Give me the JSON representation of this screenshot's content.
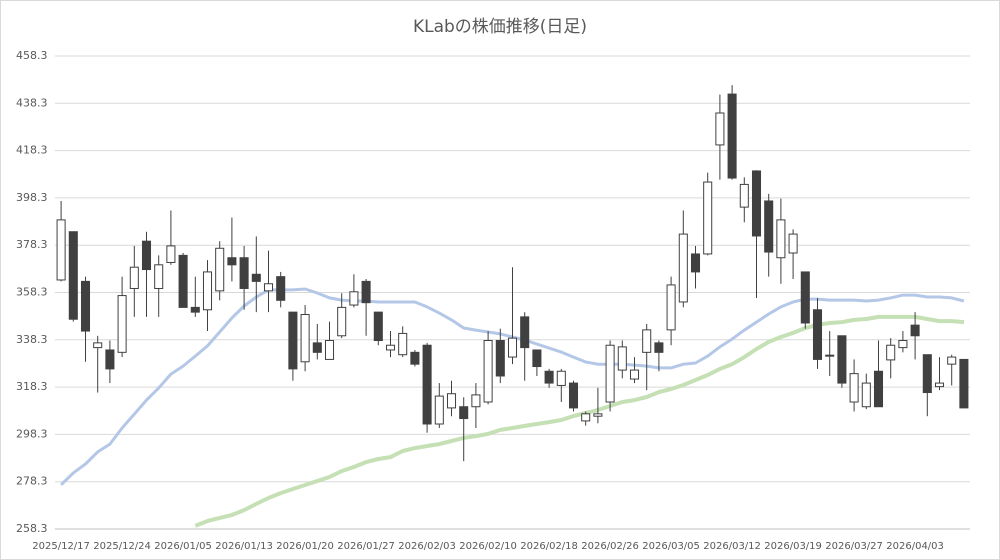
{
  "chart_data": {
    "type": "candlestick",
    "title": "KLabの株価推移(日足)",
    "categories": [
      "2025/12/17",
      null,
      null,
      null,
      null,
      "2025/12/24",
      null,
      null,
      null,
      null,
      "2026/01/05",
      null,
      null,
      null,
      null,
      "2026/01/13",
      null,
      null,
      null,
      null,
      "2026/01/20",
      null,
      null,
      null,
      null,
      "2026/01/27",
      null,
      null,
      null,
      null,
      "2026/02/03",
      null,
      null,
      null,
      null,
      "2026/02/10",
      null,
      null,
      null,
      null,
      "2026/02/18",
      null,
      null,
      null,
      null,
      "2026/02/26",
      null,
      null,
      null,
      null,
      "2026/03/05",
      null,
      null,
      null,
      null,
      "2026/03/12",
      null,
      null,
      null,
      null,
      "2026/03/19",
      null,
      null,
      null,
      null,
      "2026/03/27",
      null,
      null,
      null,
      null,
      "2026/04/03",
      null,
      null,
      null,
      null
    ],
    "open": [
      363.6,
      384,
      363,
      335,
      334,
      333,
      360,
      380,
      360,
      371,
      374,
      352,
      351,
      359,
      373,
      373,
      366,
      359,
      365,
      350,
      329,
      337,
      330,
      340,
      353,
      363,
      350,
      334,
      332,
      333,
      336,
      302.7,
      309.5,
      310,
      310,
      312,
      338,
      331,
      348,
      334,
      325,
      319,
      320,
      304,
      306,
      312,
      325.5,
      321.7,
      333,
      337,
      342.5,
      354.3,
      374.6,
      374.6,
      420.7,
      442.2,
      394.4,
      409.7,
      397,
      373,
      375,
      367,
      351,
      331.8,
      340,
      312,
      310,
      325,
      329.8,
      335,
      344.5,
      332,
      318.5,
      328,
      330
    ],
    "high": [
      397,
      384,
      365,
      340,
      338,
      365,
      378,
      384,
      374,
      393,
      375,
      365,
      372,
      380,
      390,
      378,
      382,
      376,
      367,
      350,
      353,
      345,
      346,
      358,
      366,
      364,
      350,
      342,
      344,
      334,
      337,
      320,
      321,
      314,
      320,
      342,
      343,
      369,
      350,
      334,
      326,
      326,
      321,
      308,
      318,
      338,
      338,
      331,
      345,
      338,
      365,
      393,
      378,
      409,
      442,
      446,
      407,
      410,
      400,
      398,
      385,
      367,
      356,
      342,
      340,
      330,
      324,
      338,
      339,
      342,
      350,
      332,
      331,
      332,
      330
    ],
    "low": [
      363,
      346,
      329,
      316,
      320,
      331,
      348,
      348,
      348,
      370,
      352,
      348,
      342,
      355,
      363,
      351,
      350,
      350,
      352,
      321,
      325,
      330,
      330,
      339,
      352,
      340,
      336,
      331,
      331,
      327,
      299,
      301,
      306,
      287,
      301,
      311,
      320,
      328,
      321,
      323,
      318,
      312,
      308,
      302,
      303,
      308,
      322,
      320,
      317,
      325,
      336,
      352,
      360,
      374,
      406,
      406,
      388,
      356,
      365,
      362,
      364,
      343,
      326,
      323,
      318,
      308,
      309,
      310,
      322,
      333,
      330,
      306,
      317,
      319,
      309.5
    ],
    "close": [
      389,
      347,
      342,
      337,
      326,
      357,
      369,
      368,
      370,
      378,
      352,
      350,
      367,
      377,
      370,
      360,
      363,
      362,
      355,
      326,
      349,
      333,
      338,
      352,
      358.6,
      354,
      338,
      336,
      341,
      328,
      302.7,
      314.5,
      315.5,
      305,
      315,
      338,
      323,
      339,
      335,
      327,
      320,
      325,
      309.5,
      307,
      307,
      336,
      335.3,
      325.5,
      342.5,
      333,
      361.5,
      383,
      367,
      405,
      434.2,
      406.7,
      404,
      382.2,
      375.4,
      389,
      383,
      345.4,
      330,
      331.4,
      320,
      324,
      320,
      310,
      336,
      338,
      340,
      316,
      320,
      331,
      309.5
    ],
    "up_color": "#ffffff",
    "down_color": "#404040",
    "edge_color": "#404040",
    "lines": [
      {
        "color": "#b4c7e7",
        "values": [
          277,
          282,
          285.8,
          290.9,
          294.2,
          301,
          306.9,
          312.8,
          317.9,
          323.8,
          327.2,
          331.4,
          335.7,
          341.6,
          347.5,
          352.6,
          356.4,
          359.4,
          359.4,
          359.4,
          359.8,
          358.1,
          356,
          355.1,
          354.7,
          354.7,
          354.3,
          354.3,
          354.3,
          354.3,
          352.2,
          349.6,
          346.7,
          343.3,
          342.4,
          341.6,
          340.8,
          339.5,
          338.2,
          336.5,
          334.8,
          333.1,
          331,
          328.9,
          328,
          328,
          328,
          327.6,
          327.2,
          326.4,
          326.4,
          328,
          328.5,
          331.4,
          335.3,
          338.6,
          342.4,
          345.8,
          349.2,
          352.2,
          354.3,
          355.5,
          355.5,
          355.1,
          355.1,
          355.1,
          354.7,
          355.1,
          356,
          357.2,
          357.2,
          356.4,
          356.4,
          356,
          354.7
        ]
      },
      {
        "color": "#c5e0b4",
        "values": [
          null,
          null,
          null,
          null,
          null,
          null,
          null,
          null,
          null,
          null,
          null,
          259.6,
          261.7,
          263,
          264.2,
          266.3,
          268.9,
          271.4,
          273.5,
          275.2,
          276.9,
          278.6,
          280.3,
          282.8,
          284.5,
          286.6,
          287.9,
          288.7,
          291.3,
          292.5,
          293.4,
          294.2,
          295.5,
          296.8,
          297.6,
          298.5,
          300.2,
          301,
          301.9,
          302.7,
          303.5,
          304.4,
          306.1,
          307.3,
          308.6,
          310.3,
          312,
          312.8,
          314.1,
          316.2,
          317.5,
          319.2,
          321.3,
          323.4,
          326,
          328,
          331,
          334.4,
          337.4,
          339.5,
          341.2,
          343.3,
          344.6,
          345.4,
          345.8,
          346.7,
          347.1,
          348,
          348,
          348,
          348,
          347.1,
          346.2,
          346.2,
          345.8
        ]
      }
    ],
    "ylim": [
      258.3,
      458.3
    ],
    "yticks": [
      258.3,
      278.3,
      298.3,
      318.3,
      338.3,
      358.3,
      378.3,
      398.3,
      418.3,
      438.3,
      458.3
    ],
    "grid": true
  }
}
